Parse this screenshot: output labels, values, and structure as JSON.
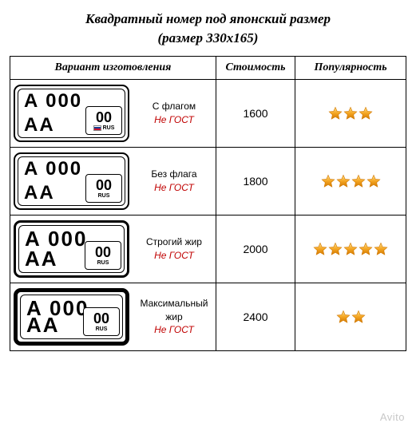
{
  "title_line1": "Квадратный номер под японский размер",
  "title_line2": "(размер 330х165)",
  "headers": {
    "variant": "Вариант изготовления",
    "cost": "Стоимость",
    "popularity": "Популярность"
  },
  "plate": {
    "top": "A 000",
    "bottom": "AA",
    "region": "00",
    "rus": "RUS"
  },
  "rows": [
    {
      "desc": "С флагом",
      "gost": "Не ГОСТ",
      "cost": "1600",
      "stars": 3,
      "flag": true,
      "border": "norm",
      "weight": "norm"
    },
    {
      "desc": "Без флага",
      "gost": "Не ГОСТ",
      "cost": "1800",
      "stars": 4,
      "flag": false,
      "border": "norm",
      "weight": "norm"
    },
    {
      "desc": "Строгий жир",
      "gost": "Не ГОСТ",
      "cost": "2000",
      "stars": 5,
      "flag": false,
      "border": "bold",
      "weight": "bold"
    },
    {
      "desc": "Максимальный жир",
      "gost": "Не ГОСТ",
      "cost": "2400",
      "stars": 2,
      "flag": false,
      "border": "xbold",
      "weight": "bold"
    }
  ],
  "colors": {
    "gost": "#c00000",
    "star_fill": "#f5a623",
    "star_stroke": "#d17800"
  },
  "watermark": "Avito"
}
